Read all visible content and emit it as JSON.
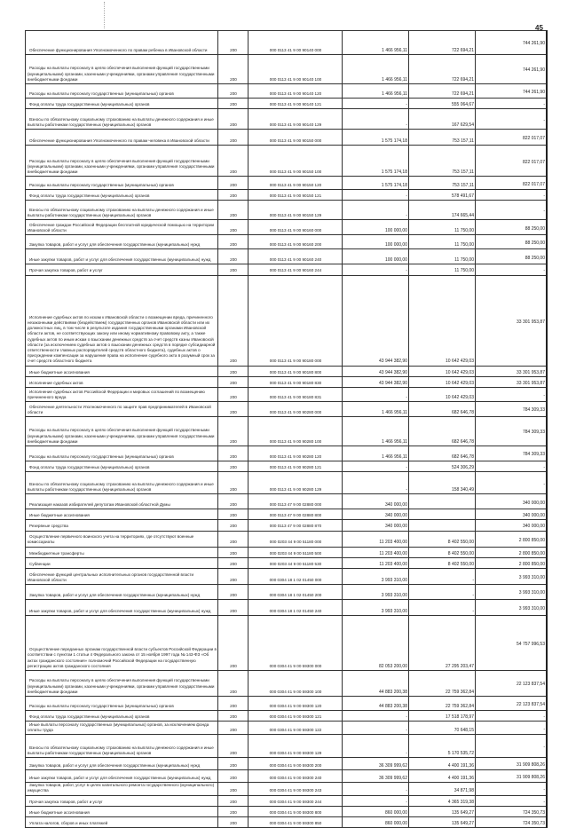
{
  "page_number": "45",
  "rows": [
    [
      "Обеспечение функционирования Уполномоченного по правам ребенка в Ивановской области",
      "200",
      "000 0113 41 9 00 90140 000",
      "1 466 956,11",
      "722 694,21",
      "744 261,90"
    ],
    [
      "Расходы на выплаты персоналу в целях обеспечения выполнения функций государственными (муниципальными) органами, казенными учреждениями, органами управления государственными внебюджетными фондами",
      "200",
      "000 0113 41 9 00 90140 100",
      "1 466 956,11",
      "722 694,21",
      "744 261,90"
    ],
    [
      "Расходы на выплаты персоналу государственных (муниципальных) органов",
      "200",
      "000 0113 41 9 00 90140 120",
      "1 466 956,11",
      "722 694,21",
      "744 261,90"
    ],
    [
      "Фонд оплаты труда государственных (муниципальных) органов",
      "200",
      "000 0113 41 9 00 90140 121",
      "-",
      "555 064,67",
      "-"
    ],
    [
      "Взносы по обязательному социальному страхованию на выплаты денежного содержания и иные выплаты работникам государственных (муниципальных) органов",
      "200",
      "000 0113 41 9 00 90140 129",
      "-",
      "167 629,54",
      "-"
    ],
    [
      "Обеспечение функционирования Уполномоченного по правам человека в Ивановской области",
      "200",
      "000 0113 41 9 00 90150 000",
      "1 575 174,18",
      "753 157,11",
      "822 017,07"
    ],
    [
      "Расходы на выплаты персоналу в целях обеспечения выполнения функций государственными (муниципальными) органами, казенными учреждениями, органами управления государственными внебюджетными фондами",
      "200",
      "000 0113 41 9 00 90150 100",
      "1 575 174,18",
      "753 157,11",
      "822 017,07"
    ],
    [
      "Расходы на выплаты персоналу государственных (муниципальных) органов",
      "200",
      "000 0113 41 9 00 90150 120",
      "1 575 174,18",
      "753 157,11",
      "822 017,07"
    ],
    [
      "Фонд оплаты труда государственных (муниципальных) органов",
      "200",
      "000 0113 41 9 00 90150 121",
      "-",
      "578 491,67",
      "-"
    ],
    [
      "Взносы по обязательному социальному страхованию на выплаты денежного содержания и иные выплаты работникам государственных (муниципальных) органов",
      "200",
      "000 0113 41 9 00 90150 129",
      "-",
      "174 665,44",
      "-"
    ],
    [
      "Обеспечение граждан Российской Федерации бесплатной юридической помощью на территории Ивановской области",
      "200",
      "000 0113 41 9 00 90160 000",
      "100 000,00",
      "11 750,00",
      "88 250,00"
    ],
    [
      "Закупка товаров, работ и услуг для обеспечения государственных (муниципальных) нужд",
      "200",
      "000 0113 41 9 00 90160 200",
      "100 000,00",
      "11 750,00",
      "88 250,00"
    ],
    [
      "Иные закупки товаров, работ и услуг для обеспечения государственных (муниципальных) нужд",
      "200",
      "000 0113 41 9 00 90160 240",
      "100 000,00",
      "11 750,00",
      "88 250,00"
    ],
    [
      "Прочая закупка товаров, работ и услуг",
      "200",
      "000 0113 41 9 00 90160 244",
      "-",
      "11 750,00",
      "-"
    ],
    [
      "Исполнение судебных актов по искам к Ивановской области о возмещении вреда, причиненного незаконными действиями (бездействием) государственных органов Ивановской области или их должностных лиц, в том числе в результате издания государственными органами Ивановской области актов, не соответствующих закону или иному нормативному правовому акту, а также судебных актов по иным искам о взыскании денежных средств за счет средств казны Ивановской области (за исключением судебных актов о взыскании денежных средств в порядке субсидиарной ответственности главных распорядителей средств областного бюджета), судебных актов о присуждении компенсации за нарушение права на исполнение судебного акта в разумный срок за счет средств областного бюджета",
      "200",
      "000 0113 41 9 00 90180 000",
      "43 944 382,90",
      "10 642 429,03",
      "33 301 953,87"
    ],
    [
      "Иные бюджетные ассигнования",
      "200",
      "000 0113 41 9 00 90180 800",
      "43 944 382,90",
      "10 642 429,03",
      "33 301 953,87"
    ],
    [
      "Исполнение судебных актов",
      "200",
      "000 0113 41 9 00 90180 830",
      "43 944 382,90",
      "10 642 429,03",
      "33 301 953,87"
    ],
    [
      "Исполнение судебных актов Российской Федерации и мировых соглашений по возмещению причиненного вреда",
      "200",
      "000 0113 41 9 00 90180 831",
      "-",
      "10 642 429,03",
      "-"
    ],
    [
      "Обеспечение деятельности Уполномоченного по защите прав предпринимателей в Ивановской области",
      "200",
      "000 0113 41 9 00 90280 000",
      "1 466 956,11",
      "682 646,78",
      "784 309,33"
    ],
    [
      "Расходы на выплаты персоналу в целях обеспечения выполнения функций государственными (муниципальными) органами, казенными учреждениями, органами управления государственными внебюджетными фондами",
      "200",
      "000 0113 41 9 00 90280 100",
      "1 466 956,11",
      "682 646,78",
      "784 309,33"
    ],
    [
      "Расходы на выплаты персоналу государственных (муниципальных) органов",
      "200",
      "000 0113 41 9 00 90280 120",
      "1 466 956,11",
      "682 646,78",
      "784 309,33"
    ],
    [
      "Фонд оплаты труда государственных (муниципальных) органов",
      "200",
      "000 0113 41 9 00 90280 121",
      "-",
      "524 306,29",
      "-"
    ],
    [
      "Взносы по обязательному социальному страхованию на выплаты денежного содержания и иные выплаты работникам государственных (муниципальных) органов",
      "200",
      "000 0113 41 9 00 90280 129",
      "-",
      "158 340,49",
      "-"
    ],
    [
      "Реализация наказов избирателей депутатам Ивановской областной Думы",
      "200",
      "000 0113 47 9 00 02880 000",
      "340 000,00",
      "",
      "340 000,00"
    ],
    [
      "Иные бюджетные ассигнования",
      "200",
      "000 0113 47 9 00 02880 800",
      "340 000,00",
      "",
      "340 000,00"
    ],
    [
      "Резервные средства",
      "200",
      "000 0113 47 9 00 02880 870",
      "340 000,00",
      "",
      "340 000,00"
    ],
    [
      "Осуществление первичного воинского учета на территориях, где отсутствуют военные комиссариаты",
      "200",
      "000 0203 44 9 00 51180 000",
      "11 203 400,00",
      "8 402 550,00",
      "2 800 850,00"
    ],
    [
      "Межбюджетные трансферты",
      "200",
      "000 0203 44 9 00 51180 500",
      "11 203 400,00",
      "8 402 550,00",
      "2 800 850,00"
    ],
    [
      "Субвенции",
      "200",
      "000 0203 44 9 00 51180 530",
      "11 203 400,00",
      "8 402 550,00",
      "2 800 850,00"
    ],
    [
      "Обеспечение функций центральных исполнительных органов государственной власти Ивановской области",
      "200",
      "000 0304 18 1 02 01450 000",
      "3 993 310,00",
      "-",
      "3 993 310,00"
    ],
    [
      "Закупка товаров, работ и услуг для обеспечения государственных (муниципальных) нужд",
      "200",
      "000 0304 18 1 02 01450 200",
      "3 993 310,00",
      "-",
      "3 993 310,00"
    ],
    [
      "Иные закупки товаров, работ и услуг для обеспечения государственных (муниципальных) нужд",
      "200",
      "000 0304 18 1 02 01450 240",
      "3 993 310,00",
      "-",
      "3 993 310,00"
    ],
    [
      "Осуществление переданных органам государственной власти субъектов Российской Федерации в соответствии с пунктом 1 статьи 4 Федерального закона от 15 ноября 1997 года № 143-ФЗ «Об актах гражданского состояния» полномочий Российской Федерации на государственную регистрацию актов гражданского состояния",
      "200",
      "000 0304 41 9 00 59300 000",
      "82 053 200,00",
      "27 295 203,47",
      "54 757 996,53"
    ],
    [
      "Расходы на выплаты персоналу в целях обеспечения выполнения функций государственными (муниципальными) органами, казенными учреждениями, органами управления государственными внебюджетными фондами",
      "200",
      "000 0304 41 9 00 59300 100",
      "44 883 200,38",
      "22 759 362,84",
      "22 123 837,54"
    ],
    [
      "Расходы на выплаты персоналу государственных (муниципальных) органов",
      "200",
      "000 0304 41 9 00 59300 120",
      "44 883 200,38",
      "22 759 362,84",
      "22 123 837,54"
    ],
    [
      "Фонд оплаты труда государственных (муниципальных) органов",
      "200",
      "000 0304 41 9 00 59300 121",
      "-",
      "17 518 178,97",
      "-"
    ],
    [
      "Иные выплаты персоналу государственных (муниципальных) органов, за исключением фонда оплаты труда",
      "200",
      "000 0304 41 9 00 59300 122",
      "-",
      "70 648,15",
      "-"
    ],
    [
      "Взносы по обязательному социальному страхованию на выплаты денежного содержания и иные выплаты работникам государственных (муниципальных) органов",
      "200",
      "000 0304 41 9 00 59300 129",
      "-",
      "5 170 535,72",
      "-"
    ],
    [
      "Закупка товаров, работ и услуг для обеспечения государственных (муниципальных) нужд",
      "200",
      "000 0304 41 9 00 59300 200",
      "36 309 999,62",
      "4 400 191,36",
      "31 909 808,26"
    ],
    [
      "Иные закупки товаров, работ и услуг для обеспечения государственных (муниципальных) нужд",
      "200",
      "000 0304 41 9 00 59300 240",
      "36 309 999,62",
      "4 400 191,36",
      "31 909 808,26"
    ],
    [
      "Закупка товаров, работ, услуг в целях капитального ремонта государственного (муниципального) имущества",
      "200",
      "000 0304 41 9 00 59300 243",
      "-",
      "34 871,98",
      "-"
    ],
    [
      "Прочая закупка товаров, работ и услуг",
      "200",
      "000 0304 41 9 00 59300 244",
      "-",
      "4 365 319,38",
      "-"
    ],
    [
      "Иные бюджетные ассигнования",
      "200",
      "000 0304 41 9 00 59300 800",
      "860 000,00",
      "135 649,27",
      "724 350,73"
    ],
    [
      "Уплата налогов, сборов и иных платежей",
      "200",
      "000 0304 41 9 00 59300 850",
      "860 000,00",
      "135 649,27",
      "724 350,73"
    ]
  ]
}
